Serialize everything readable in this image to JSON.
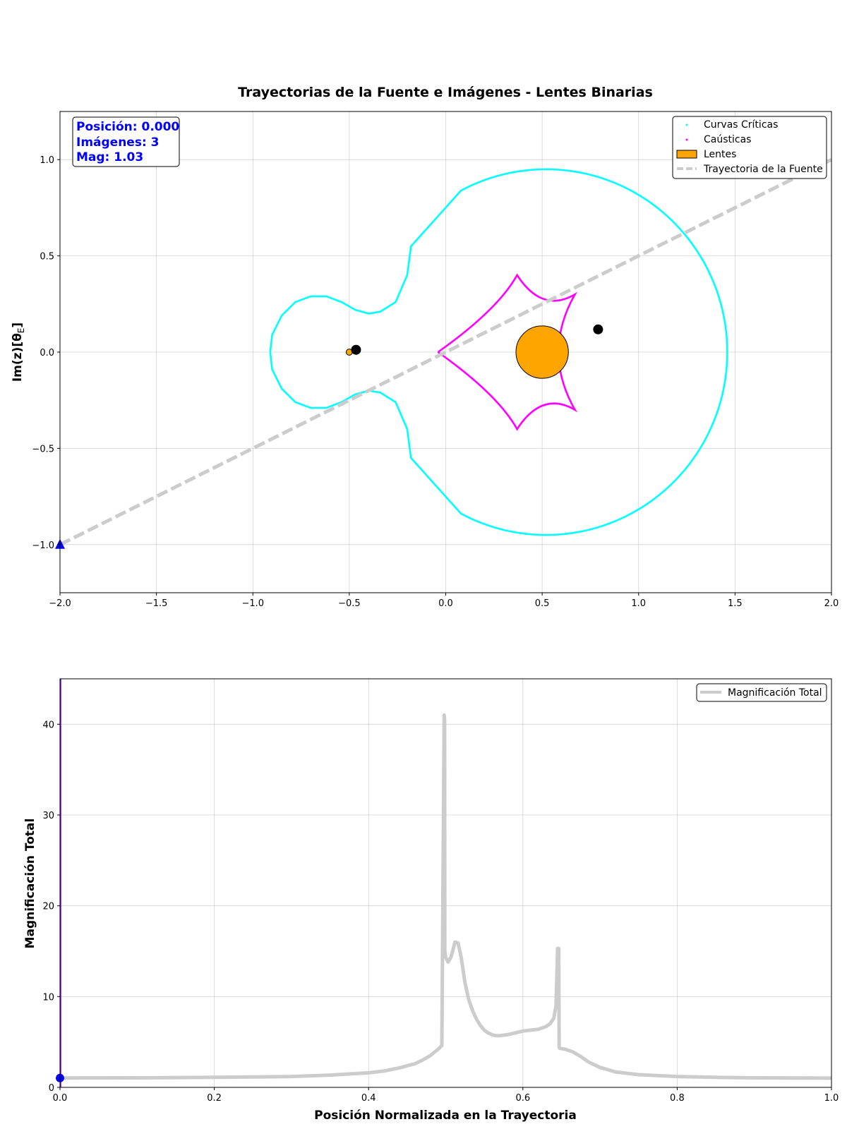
{
  "chart_data": [
    {
      "type": "scatter",
      "title": "Trayectorias de la Fuente e Imágenes - Lentes Binarias",
      "ylabel": "Im(z)[θ",
      "ylabel_sub": "E",
      "ylabel_close": "]",
      "xlim": [
        -2.0,
        2.0
      ],
      "ylim": [
        -1.25,
        1.25
      ],
      "xticks": [
        -2.0,
        -1.5,
        -1.0,
        -0.5,
        0.0,
        0.5,
        1.0,
        1.5,
        2.0
      ],
      "xtick_labels": [
        "−2.0",
        "−1.5",
        "−1.0",
        "−0.5",
        "0.0",
        "0.5",
        "1.0",
        "1.5",
        "2.0"
      ],
      "yticks": [
        -1.0,
        -0.5,
        0.0,
        0.5,
        1.0
      ],
      "ytick_labels": [
        "−1.0",
        "−0.5",
        "0.0",
        "0.5",
        "1.0"
      ],
      "grid": true,
      "legend_position": "top-right",
      "legend": [
        {
          "label": "Curvas Críticas",
          "color": "#00ffff",
          "kind": "point"
        },
        {
          "label": "Caústicas",
          "color": "#ff00ff",
          "kind": "point"
        },
        {
          "label": "Lentes",
          "color": "#ffa500",
          "kind": "patch"
        },
        {
          "label": "Trayectoria de la Fuente",
          "color": "#cccccc",
          "kind": "dashed-line"
        }
      ],
      "info_box": {
        "position_label": "Posición: 0.000",
        "images_label": "Imágenes: 3",
        "mag_label": "Mag: 1.03"
      },
      "lenses": [
        {
          "x": -0.5,
          "y": 0.0,
          "r": 0.016,
          "color": "#ffa500"
        },
        {
          "x": 0.5,
          "y": 0.0,
          "r": 0.136,
          "color": "#ffa500"
        }
      ],
      "images": [
        {
          "x": -0.465,
          "y": 0.012,
          "color": "#000000"
        },
        {
          "x": 0.79,
          "y": 0.118,
          "color": "#000000"
        }
      ],
      "source": {
        "x": -2.0,
        "y": -1.0,
        "color": "#0000ff",
        "marker": "triangle"
      },
      "trajectory": {
        "from": [
          -2.0,
          -1.0
        ],
        "to": [
          2.0,
          1.0
        ],
        "color": "#cccccc"
      },
      "critical_curves": {
        "color": "#00ffff"
      },
      "caustics": {
        "color": "#ff00ff",
        "cusps": [
          [
            -0.04,
            0.0
          ],
          [
            0.37,
            0.4
          ],
          [
            0.67,
            0.3
          ],
          [
            0.67,
            -0.3
          ],
          [
            0.37,
            -0.4
          ]
        ],
        "pinch": [
          [
            0.27,
            0.0
          ],
          [
            0.47,
            0.26
          ],
          [
            0.55,
            0.0
          ],
          [
            0.47,
            -0.26
          ],
          [
            0.27,
            0.0
          ]
        ]
      }
    },
    {
      "type": "line",
      "xlabel": "Posición Normalizada en la Trayectoria",
      "ylabel": "Magnificación Total",
      "xlim": [
        0.0,
        1.0
      ],
      "ylim": [
        0,
        45
      ],
      "xticks": [
        0.0,
        0.2,
        0.4,
        0.6,
        0.8,
        1.0
      ],
      "xtick_labels": [
        "0.0",
        "0.2",
        "0.4",
        "0.6",
        "0.8",
        "1.0"
      ],
      "yticks": [
        0,
        10,
        20,
        30,
        40
      ],
      "ytick_labels": [
        "0",
        "10",
        "20",
        "30",
        "40"
      ],
      "grid": true,
      "legend_position": "top-right",
      "legend": [
        {
          "label": "Magnificación Total",
          "color": "#cccccc",
          "kind": "line"
        }
      ],
      "current_marker": {
        "x": 0.0,
        "y": 1.03,
        "color": "#0000ff"
      },
      "current_line": {
        "x": 0.0,
        "color": "#8000ff"
      },
      "series": [
        {
          "name": "Magnificación Total",
          "color": "#cccccc",
          "x": [
            0.0,
            0.1,
            0.2,
            0.25,
            0.3,
            0.35,
            0.4,
            0.42,
            0.44,
            0.46,
            0.47,
            0.48,
            0.49,
            0.495,
            0.498,
            0.4985,
            0.4988,
            0.5,
            0.503,
            0.507,
            0.512,
            0.516,
            0.52,
            0.525,
            0.53,
            0.535,
            0.54,
            0.545,
            0.55,
            0.555,
            0.56,
            0.565,
            0.57,
            0.58,
            0.59,
            0.6,
            0.61,
            0.62,
            0.63,
            0.635,
            0.64,
            0.643,
            0.645,
            0.6465,
            0.647,
            0.648,
            0.655,
            0.665,
            0.675,
            0.685,
            0.7,
            0.72,
            0.75,
            0.8,
            0.85,
            0.9,
            0.95,
            1.0
          ],
          "y": [
            1.03,
            1.05,
            1.1,
            1.15,
            1.2,
            1.35,
            1.6,
            1.8,
            2.15,
            2.6,
            3.0,
            3.5,
            4.2,
            4.6,
            41.0,
            40.5,
            15.0,
            14.3,
            13.8,
            14.4,
            16.0,
            15.9,
            14.3,
            11.5,
            9.6,
            8.4,
            7.5,
            6.8,
            6.3,
            6.0,
            5.8,
            5.7,
            5.7,
            5.8,
            6.0,
            6.2,
            6.3,
            6.4,
            6.7,
            7.0,
            7.6,
            9.0,
            15.3,
            15.3,
            4.4,
            4.3,
            4.2,
            3.9,
            3.4,
            2.8,
            2.2,
            1.7,
            1.4,
            1.2,
            1.1,
            1.05,
            1.03,
            1.02
          ]
        }
      ]
    }
  ]
}
